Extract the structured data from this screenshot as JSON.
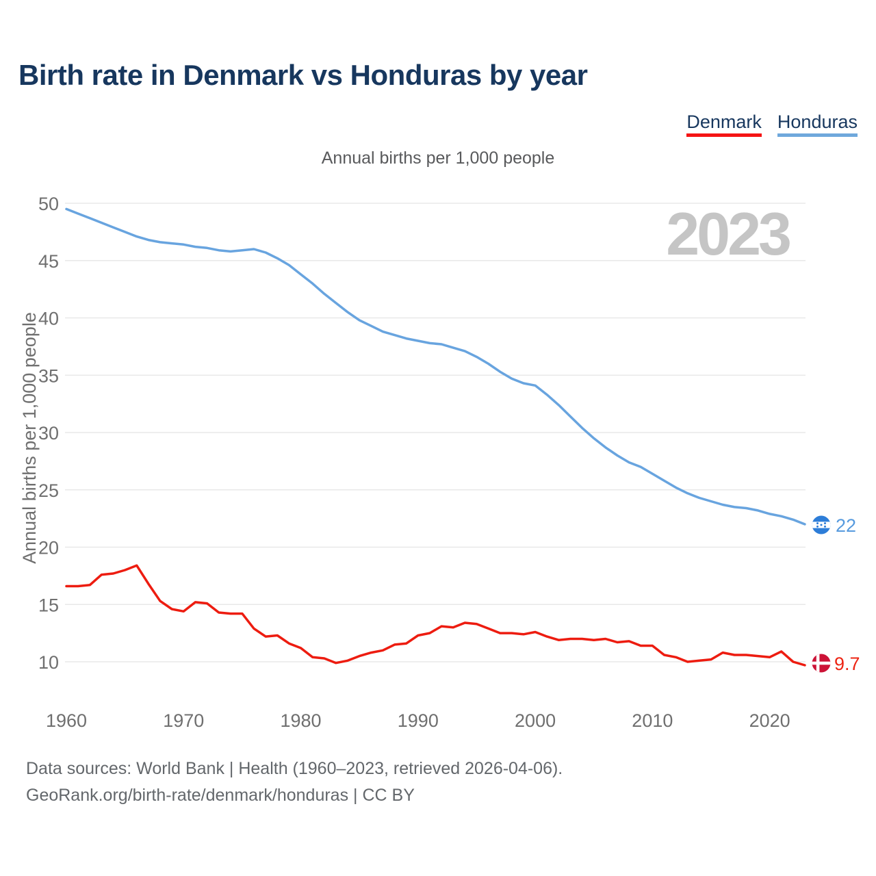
{
  "title": "Birth rate in Denmark vs Honduras by year",
  "subtitle": "Annual births per 1,000 people",
  "watermark": "2023",
  "legend": {
    "items": [
      {
        "label": "Denmark",
        "color": "#f51414"
      },
      {
        "label": "Honduras",
        "color": "#6fa8dc"
      }
    ]
  },
  "y_axis": {
    "label": "Annual births per 1,000 people",
    "ticks": [
      50,
      45,
      40,
      35,
      30,
      25,
      20,
      15,
      10
    ]
  },
  "x_axis": {
    "ticks": [
      1960,
      1970,
      1980,
      1990,
      2000,
      2010,
      2020
    ]
  },
  "end_labels": {
    "honduras": "22",
    "denmark": "9.7"
  },
  "footer": {
    "line1": "Data sources: World Bank | Health (1960–2023, retrieved 2026-04-06).",
    "line2": "GeoRank.org/birth-rate/denmark/honduras | CC BY"
  },
  "chart_data": {
    "type": "line",
    "title": "Birth rate in Denmark vs Honduras by year",
    "ylabel": "Annual births per 1,000 people",
    "xlim": [
      1960,
      2023
    ],
    "ylim": [
      10,
      50
    ],
    "grid": "horizontal",
    "legend_position": "top-right",
    "x": [
      1960,
      1961,
      1962,
      1963,
      1964,
      1965,
      1966,
      1967,
      1968,
      1969,
      1970,
      1971,
      1972,
      1973,
      1974,
      1975,
      1976,
      1977,
      1978,
      1979,
      1980,
      1981,
      1982,
      1983,
      1984,
      1985,
      1986,
      1987,
      1988,
      1989,
      1990,
      1991,
      1992,
      1993,
      1994,
      1995,
      1996,
      1997,
      1998,
      1999,
      2000,
      2001,
      2002,
      2003,
      2004,
      2005,
      2006,
      2007,
      2008,
      2009,
      2010,
      2011,
      2012,
      2013,
      2014,
      2015,
      2016,
      2017,
      2018,
      2019,
      2020,
      2021,
      2022,
      2023
    ],
    "series": [
      {
        "name": "Denmark",
        "color": "#ed1c10",
        "values": [
          16.6,
          16.6,
          16.7,
          17.6,
          17.7,
          18.0,
          18.4,
          16.8,
          15.3,
          14.6,
          14.4,
          15.2,
          15.1,
          14.3,
          14.2,
          14.2,
          12.9,
          12.2,
          12.3,
          11.6,
          11.2,
          10.4,
          10.3,
          9.9,
          10.1,
          10.5,
          10.8,
          11.0,
          11.5,
          11.6,
          12.3,
          12.5,
          13.1,
          13.0,
          13.4,
          13.3,
          12.9,
          12.5,
          12.5,
          12.4,
          12.6,
          12.2,
          11.9,
          12.0,
          12.0,
          11.9,
          12.0,
          11.7,
          11.8,
          11.4,
          11.4,
          10.6,
          10.4,
          10.0,
          10.1,
          10.2,
          10.8,
          10.6,
          10.6,
          10.5,
          10.4,
          10.9,
          10.0,
          9.7
        ]
      },
      {
        "name": "Honduras",
        "color": "#68a4df",
        "values": [
          49.5,
          49.1,
          48.7,
          48.3,
          47.9,
          47.5,
          47.1,
          46.8,
          46.6,
          46.5,
          46.4,
          46.2,
          46.1,
          45.9,
          45.8,
          45.9,
          46.0,
          45.7,
          45.2,
          44.6,
          43.8,
          43.0,
          42.1,
          41.3,
          40.5,
          39.8,
          39.3,
          38.8,
          38.5,
          38.2,
          38.0,
          37.8,
          37.7,
          37.4,
          37.1,
          36.6,
          36.0,
          35.3,
          34.7,
          34.3,
          34.1,
          33.3,
          32.4,
          31.4,
          30.4,
          29.5,
          28.7,
          28.0,
          27.4,
          27.0,
          26.4,
          25.8,
          25.2,
          24.7,
          24.3,
          24.0,
          23.7,
          23.5,
          23.4,
          23.2,
          22.9,
          22.7,
          22.4,
          22.0
        ]
      }
    ]
  }
}
